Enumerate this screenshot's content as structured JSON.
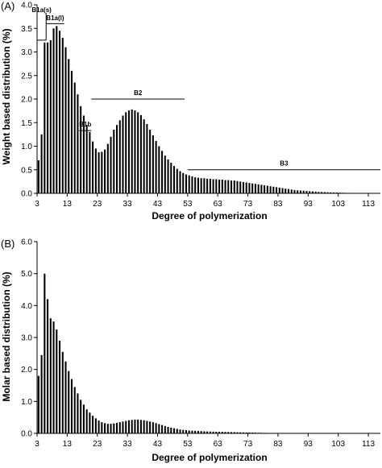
{
  "chart_data": [
    {
      "type": "bar",
      "panel": "(A)",
      "xlabel": "Degree of polymerization",
      "ylabel": "Weight based distribution (%)",
      "xlim": [
        3,
        117
      ],
      "ylim": [
        0,
        4.0
      ],
      "yticks": [
        "0.0",
        "0.5",
        "1.0",
        "1.5",
        "2.0",
        "2.5",
        "3.0",
        "3.5",
        "4.0"
      ],
      "xticks": [
        "3",
        "13",
        "23",
        "33",
        "43",
        "53",
        "63",
        "73",
        "83",
        "93",
        "103",
        "113"
      ],
      "x_start": 3,
      "values": [
        0.7,
        1.25,
        3.2,
        3.2,
        3.25,
        3.5,
        3.55,
        3.45,
        3.3,
        3.1,
        2.85,
        2.6,
        2.35,
        2.1,
        1.85,
        1.65,
        1.45,
        1.3,
        1.1,
        0.95,
        0.87,
        0.88,
        0.93,
        1.05,
        1.2,
        1.35,
        1.45,
        1.55,
        1.65,
        1.72,
        1.76,
        1.78,
        1.76,
        1.72,
        1.66,
        1.57,
        1.47,
        1.35,
        1.23,
        1.11,
        1.0,
        0.9,
        0.8,
        0.72,
        0.65,
        0.58,
        0.52,
        0.47,
        0.43,
        0.4,
        0.38,
        0.36,
        0.34,
        0.33,
        0.32,
        0.32,
        0.31,
        0.31,
        0.3,
        0.3,
        0.29,
        0.29,
        0.28,
        0.28,
        0.27,
        0.27,
        0.26,
        0.25,
        0.24,
        0.23,
        0.22,
        0.21,
        0.2,
        0.19,
        0.18,
        0.17,
        0.16,
        0.15,
        0.14,
        0.13,
        0.12,
        0.11,
        0.1,
        0.09,
        0.08,
        0.07,
        0.065,
        0.06,
        0.055,
        0.05,
        0.045,
        0.04,
        0.035,
        0.03,
        0.028,
        0.025,
        0.022,
        0.02,
        0.018,
        0.016,
        0.014,
        0.012,
        0.01,
        0.009,
        0.008,
        0.007,
        0.006,
        0.005,
        0.004,
        0.003,
        0.002,
        0.002,
        0.001
      ],
      "grid": false,
      "annotations": [
        {
          "label": "B1a(s)",
          "x_from": 3,
          "x_to": 6,
          "level": 3.25,
          "label_level": 3.83
        },
        {
          "label": "B1a(l)",
          "x_from": 6,
          "x_to": 12,
          "level": 3.6,
          "label_level": 3.66
        },
        {
          "label": "B1b",
          "x_from": 17,
          "x_to": 21,
          "level": 1.33,
          "label_level": 1.4
        },
        {
          "label": "B2",
          "x_from": 21,
          "x_to": 52,
          "level": 2.0,
          "label_level": 2.07
        },
        {
          "label": "B3",
          "x_from": 53,
          "x_to": 117,
          "level": 0.5,
          "label_level": 0.57
        }
      ],
      "extra_vlines": [
        {
          "x": 6,
          "from": 3.25,
          "to": 3.83
        }
      ]
    },
    {
      "type": "bar",
      "panel": "(B)",
      "xlabel": "Degree of polymerization",
      "ylabel": "Molar based distribution (%)",
      "xlim": [
        3,
        117
      ],
      "ylim": [
        0,
        6.0
      ],
      "yticks": [
        "0.0",
        "1.0",
        "2.0",
        "3.0",
        "4.0",
        "5.0",
        "6.0"
      ],
      "xticks": [
        "3",
        "13",
        "23",
        "33",
        "43",
        "53",
        "63",
        "73",
        "83",
        "93",
        "103",
        "113"
      ],
      "x_start": 3,
      "values": [
        1.8,
        2.45,
        5.0,
        4.2,
        3.6,
        3.5,
        3.25,
        2.9,
        2.55,
        2.25,
        1.95,
        1.7,
        1.45,
        1.25,
        1.05,
        0.9,
        0.75,
        0.65,
        0.55,
        0.47,
        0.4,
        0.35,
        0.32,
        0.3,
        0.3,
        0.31,
        0.33,
        0.35,
        0.37,
        0.39,
        0.41,
        0.42,
        0.43,
        0.43,
        0.42,
        0.41,
        0.39,
        0.37,
        0.35,
        0.32,
        0.29,
        0.26,
        0.23,
        0.2,
        0.18,
        0.16,
        0.14,
        0.12,
        0.11,
        0.1,
        0.09,
        0.085,
        0.08,
        0.075,
        0.07,
        0.065,
        0.06,
        0.058,
        0.055,
        0.052,
        0.05,
        0.048,
        0.045,
        0.043,
        0.04,
        0.038,
        0.035,
        0.033,
        0.03,
        0.028,
        0.026,
        0.024,
        0.022,
        0.02,
        0.018,
        0.016,
        0.014,
        0.012,
        0.011,
        0.01,
        0.009,
        0.008,
        0.007,
        0.006,
        0.005,
        0.004,
        0.003,
        0.002,
        0.001
      ],
      "grid": false
    }
  ]
}
